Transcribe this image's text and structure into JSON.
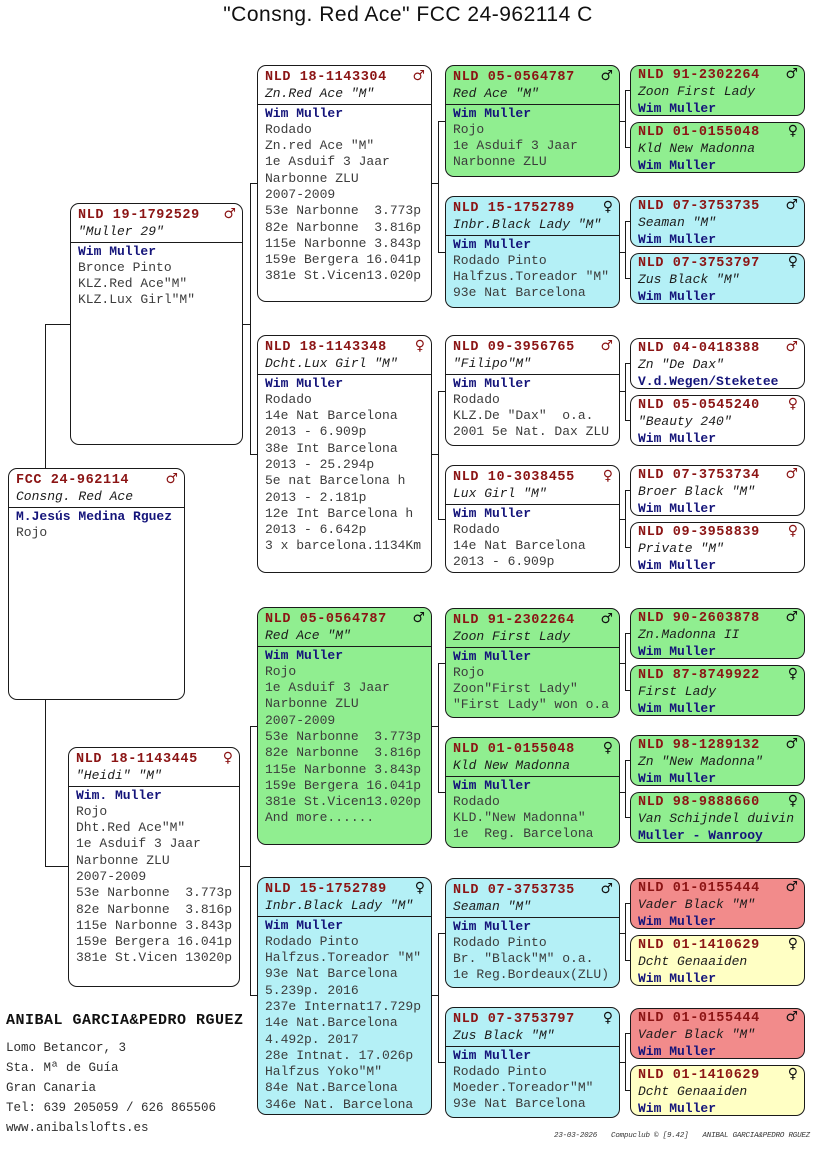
{
  "title": "\"Consng. Red Ace\"  FCC 24-962114 C",
  "colors": {
    "green": "#90EE90",
    "cyan": "#B4F0F6",
    "red": "#F28B8B",
    "yellow": "#FFFFC4",
    "ring_text": "#8B1414",
    "owner_text": "#14147A",
    "body_text": "#3C3C3C"
  },
  "boxes": [
    {
      "id": "fcc",
      "gen": 1,
      "bg": "white",
      "ring": "FCC 24-962114",
      "sex": "male",
      "name": "Consng. Red Ace",
      "lines": [
        "M.Jesús Medina Rguez",
        "Rojo"
      ]
    },
    {
      "id": "b21",
      "gen": 2,
      "bg": "white",
      "ring": "NLD 19-1792529",
      "sex": "male",
      "name": "\"Muller 29\"",
      "lines": [
        "Wim Muller",
        "Bronce Pinto",
        "KLZ.Red Ace\"M\"",
        "KLZ.Lux Girl\"M\""
      ]
    },
    {
      "id": "b22",
      "gen": 2,
      "bg": "white",
      "ring": "NLD 18-1143445",
      "sex": "female",
      "name": "\"Heidi\" \"M\"",
      "lines": [
        "Wim. Muller",
        "Rojo",
        "Dht.Red Ace\"M\"",
        "1e Asduif 3 Jaar",
        "Narbonne ZLU",
        "2007-2009",
        "53e Narbonne  3.773p",
        "82e Narbonne  3.816p",
        "115e Narbonne 3.843p",
        "159e Bergera 16.041p",
        "381e St.Vicen 13020p"
      ]
    },
    {
      "id": "b31",
      "gen": 3,
      "bg": "white",
      "ring": "NLD 18-1143304",
      "sex": "male",
      "name": "Zn.Red Ace \"M\"",
      "lines": [
        "Wim Muller",
        "Rodado",
        "Zn.red Ace \"M\"",
        "1e Asduif 3 Jaar",
        "Narbonne ZLU",
        "2007-2009",
        "53e Narbonne  3.773p",
        "82e Narbonne  3.816p",
        "115e Narbonne 3.843p",
        "159e Bergera 16.041p",
        "381e St.Vicen13.020p"
      ]
    },
    {
      "id": "b32",
      "gen": 3,
      "bg": "white",
      "ring": "NLD 18-1143348",
      "sex": "female",
      "name": "Dcht.Lux Girl \"M\"",
      "lines": [
        "Wim Muller",
        "Rodado",
        "14e Nat Barcelona",
        "2013 - 6.909p",
        "38e Int Barcelona",
        "2013 - 25.294p",
        "5e nat Barcelona h",
        "2013 - 2.181p",
        "12e Int Barcelona h",
        "2013 - 6.642p",
        "3 x barcelona.1134Km"
      ]
    },
    {
      "id": "b33",
      "gen": 3,
      "bg": "green",
      "ring": "NLD 05-0564787",
      "sex": "male",
      "name": "Red Ace \"M\"",
      "lines": [
        "Wim Muller",
        "Rojo",
        "1e Asduif 3 Jaar",
        "Narbonne ZLU",
        "2007-2009",
        "53e Narbonne  3.773p",
        "82e Narbonne  3.816p",
        "115e Narbonne 3.843p",
        "159e Bergera 16.041p",
        "381e St.Vicen13.020p",
        "And more......"
      ]
    },
    {
      "id": "b34",
      "gen": 3,
      "bg": "cyan",
      "ring": "NLD 15-1752789",
      "sex": "female",
      "name": "Inbr.Black Lady \"M\"",
      "lines": [
        "Wim Muller",
        "Rodado Pinto",
        "Halfzus.Toreador \"M\"",
        "93e Nat Barcelona",
        "5.239p. 2016",
        "237e Internat17.729p",
        "14e Nat.Barcelona",
        "4.492p. 2017",
        "28e Intnat. 17.026p",
        "Halfzus Yoko\"M\"",
        "84e Nat.Barcelona",
        "346e Nat. Barcelona"
      ]
    },
    {
      "id": "b41",
      "gen": 4,
      "bg": "green",
      "ring": "NLD 05-0564787",
      "sex": "male",
      "name": "Red Ace \"M\"",
      "lines": [
        "Wim Muller",
        "Rojo",
        "1e Asduif 3 Jaar",
        "Narbonne ZLU"
      ]
    },
    {
      "id": "b42",
      "gen": 4,
      "bg": "cyan",
      "ring": "NLD 15-1752789",
      "sex": "female",
      "name": "Inbr.Black Lady \"M\"",
      "lines": [
        "Wim Muller",
        "Rodado Pinto",
        "Halfzus.Toreador \"M\"",
        "93e Nat Barcelona"
      ]
    },
    {
      "id": "b43",
      "gen": 4,
      "bg": "white",
      "ring": "NLD 09-3956765",
      "sex": "male",
      "name": "\"Filipo\"M\"",
      "lines": [
        "Wim Muller",
        "Rodado",
        "KLZ.De \"Dax\"  o.a.",
        "2001 5e Nat. Dax ZLU"
      ]
    },
    {
      "id": "b44",
      "gen": 4,
      "bg": "white",
      "ring": "NLD 10-3038455",
      "sex": "female",
      "name": "Lux Girl \"M\"",
      "lines": [
        "Wim Muller",
        "Rodado",
        "14e Nat Barcelona",
        "2013 - 6.909p"
      ]
    },
    {
      "id": "b45",
      "gen": 4,
      "bg": "green",
      "ring": "NLD 91-2302264",
      "sex": "male",
      "name": "Zoon First Lady",
      "lines": [
        "Wim Muller",
        "Rojo",
        "Zoon\"First Lady\"",
        "\"First Lady\" won o.a"
      ]
    },
    {
      "id": "b46",
      "gen": 4,
      "bg": "green",
      "ring": "NLD 01-0155048",
      "sex": "female",
      "name": "Kld New Madonna",
      "lines": [
        "Wim Muller",
        "Rodado",
        "KLD.\"New Madonna\"",
        "1e  Reg. Barcelona"
      ]
    },
    {
      "id": "b47",
      "gen": 4,
      "bg": "cyan",
      "ring": "NLD 07-3753735",
      "sex": "male",
      "name": "Seaman \"M\"",
      "lines": [
        "Wim Muller",
        "Rodado Pinto",
        "Br. \"Black\"M\" o.a.",
        "1e Reg.Bordeaux(ZLU)"
      ]
    },
    {
      "id": "b48",
      "gen": 4,
      "bg": "cyan",
      "ring": "NLD 07-3753797",
      "sex": "female",
      "name": "Zus Black \"M\"",
      "lines": [
        "Wim Muller",
        "Rodado Pinto",
        "Moeder.Toreador\"M\"",
        "93e Nat Barcelona"
      ]
    },
    {
      "id": "p1",
      "gen": 5,
      "bg": "green",
      "ring": "NLD 91-2302264",
      "sex": "male",
      "name": "Zoon First Lady",
      "lines": [
        "Wim Muller"
      ]
    },
    {
      "id": "p2",
      "gen": 5,
      "bg": "green",
      "ring": "NLD 01-0155048",
      "sex": "female",
      "name": "Kld New Madonna",
      "lines": [
        "Wim Muller"
      ]
    },
    {
      "id": "p3",
      "gen": 5,
      "bg": "cyan",
      "ring": "NLD 07-3753735",
      "sex": "male",
      "name": "Seaman \"M\"",
      "lines": [
        "Wim Muller"
      ]
    },
    {
      "id": "p4",
      "gen": 5,
      "bg": "cyan",
      "ring": "NLD 07-3753797",
      "sex": "female",
      "name": "Zus Black \"M\"",
      "lines": [
        "Wim Muller"
      ]
    },
    {
      "id": "p5",
      "gen": 5,
      "bg": "white",
      "ring": "NLD 04-0418388",
      "sex": "male",
      "name": "Zn \"De Dax\"",
      "lines": [
        "V.d.Wegen/Steketee"
      ]
    },
    {
      "id": "p6",
      "gen": 5,
      "bg": "white",
      "ring": "NLD 05-0545240",
      "sex": "female",
      "name": "\"Beauty 240\"",
      "lines": [
        "Wim Muller"
      ]
    },
    {
      "id": "p7",
      "gen": 5,
      "bg": "white",
      "ring": "NLD 07-3753734",
      "sex": "male",
      "name": "Broer Black \"M\"",
      "lines": [
        "Wim Muller"
      ]
    },
    {
      "id": "p8",
      "gen": 5,
      "bg": "white",
      "ring": "NLD 09-3958839",
      "sex": "female",
      "name": "Private \"M\"",
      "lines": [
        "Wim Muller"
      ]
    },
    {
      "id": "p9",
      "gen": 5,
      "bg": "green",
      "ring": "NLD 90-2603878",
      "sex": "male",
      "name": "Zn.Madonna II",
      "lines": [
        "Wim Muller"
      ]
    },
    {
      "id": "p10",
      "gen": 5,
      "bg": "green",
      "ring": "NLD 87-8749922",
      "sex": "female",
      "name": "First Lady",
      "lines": [
        "Wim Muller"
      ]
    },
    {
      "id": "p11",
      "gen": 5,
      "bg": "green",
      "ring": "NLD 98-1289132",
      "sex": "male",
      "name": "Zn \"New Madonna\"",
      "lines": [
        "Wim Muller"
      ]
    },
    {
      "id": "p12",
      "gen": 5,
      "bg": "green",
      "ring": "NLD 98-9888660",
      "sex": "female",
      "name": "Van Schijndel duivin",
      "lines": [
        "Muller - Wanrooy"
      ]
    },
    {
      "id": "p13",
      "gen": 5,
      "bg": "red",
      "ring": "NLD 01-0155444",
      "sex": "male",
      "name": "Vader Black \"M\"",
      "lines": [
        "Wim Muller"
      ]
    },
    {
      "id": "p14",
      "gen": 5,
      "bg": "yellow",
      "ring": "NLD 01-1410629",
      "sex": "female",
      "name": "Dcht Genaaiden",
      "lines": [
        "Wim Muller"
      ]
    },
    {
      "id": "p15",
      "gen": 5,
      "bg": "red",
      "ring": "NLD 01-0155444",
      "sex": "male",
      "name": "Vader Black \"M\"",
      "lines": [
        "Wim Muller"
      ]
    },
    {
      "id": "p16",
      "gen": 5,
      "bg": "yellow",
      "ring": "NLD 01-1410629",
      "sex": "female",
      "name": "Dcht Genaaiden",
      "lines": [
        "Wim Muller"
      ]
    }
  ],
  "breeder": {
    "name": "ANIBAL GARCIA&PEDRO RGUEZ",
    "address_lines": [
      "Lomo Betancor, 3",
      "Sta. Mª de Guía",
      "Gran Canaria",
      "Tel: 639 205059 / 626 865506",
      "www.anibalslofts.es"
    ]
  },
  "footer": {
    "date": "23-03-2026",
    "app": "Compuclub © [9.42]",
    "owner": "ANIBAL GARCIA&PEDRO RGUEZ"
  }
}
